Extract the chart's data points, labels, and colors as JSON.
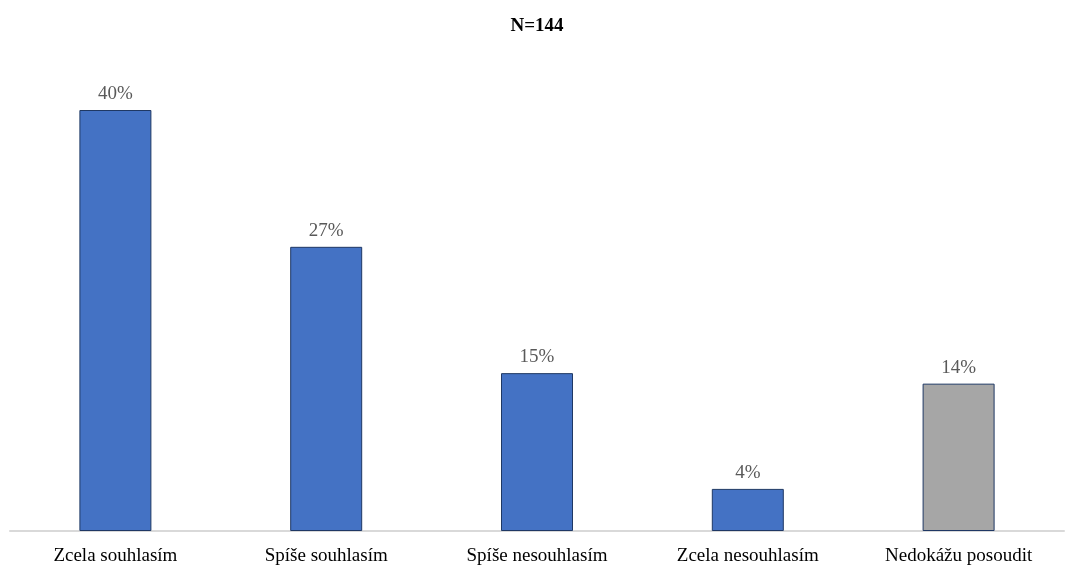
{
  "chart_data": {
    "type": "bar",
    "title": "N=144",
    "categories": [
      "Zcela souhlasím",
      "Spíše souhlasím",
      "Spíše nesouhlasím",
      "Zcela nesouhlasím",
      "Nedokážu posoudit"
    ],
    "values": [
      40,
      27,
      15,
      4,
      14
    ],
    "colors": [
      "#4472c4",
      "#4472c4",
      "#4472c4",
      "#4472c4",
      "#a6a6a6"
    ],
    "value_labels": [
      "40%",
      "27%",
      "15%",
      "4%",
      "14%"
    ]
  }
}
